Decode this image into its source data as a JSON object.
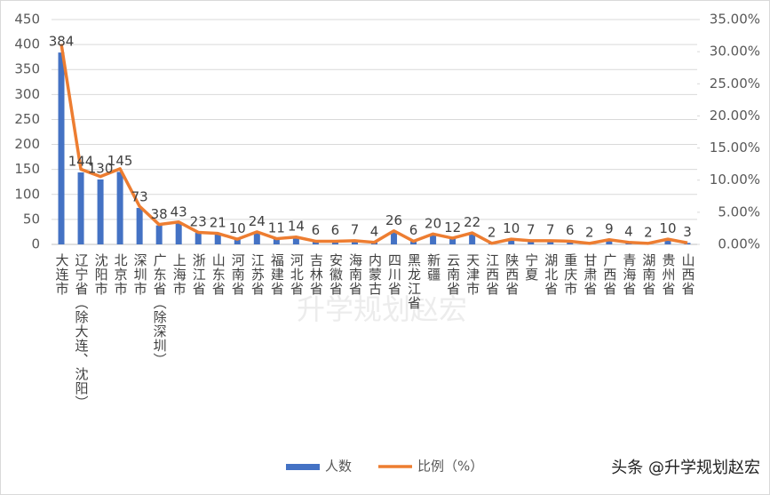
{
  "chart_data": {
    "type": "bar",
    "categories": [
      "大连市",
      "辽宁省（除大连、沈阳）",
      "沈阳市",
      "北京市",
      "深圳市",
      "广东省（除深圳）",
      "上海市",
      "浙江省",
      "山东省",
      "河南省",
      "江苏省",
      "福建省",
      "河北省",
      "吉林省",
      "安徽省",
      "海南省",
      "内蒙古",
      "四川省",
      "黑龙江省",
      "新疆",
      "云南省",
      "天津市",
      "江西省",
      "陕西省",
      "宁夏",
      "湖北省",
      "重庆市",
      "甘肃省",
      "广西省",
      "青海省",
      "湖南省",
      "贵州省",
      "山西省"
    ],
    "series": [
      {
        "name": "人数",
        "type": "bar",
        "color": "#4472c4",
        "values": [
          384,
          144,
          130,
          145,
          73,
          38,
          43,
          23,
          21,
          10,
          24,
          11,
          14,
          6,
          6,
          7,
          4,
          26,
          6,
          20,
          12,
          22,
          2,
          10,
          7,
          7,
          6,
          2,
          9,
          4,
          2,
          10,
          3
        ]
      },
      {
        "name": "比例（%）",
        "type": "line",
        "axis": "y2",
        "color": "#ed7d31",
        "values": [
          31.19,
          11.7,
          10.56,
          11.78,
          5.93,
          3.09,
          3.49,
          1.87,
          1.71,
          0.81,
          1.95,
          0.89,
          1.14,
          0.49,
          0.49,
          0.57,
          0.32,
          2.11,
          0.49,
          1.62,
          0.97,
          1.79,
          0.16,
          0.81,
          0.57,
          0.57,
          0.49,
          0.16,
          0.73,
          0.32,
          0.16,
          0.81,
          0.24
        ]
      }
    ],
    "ylim": [
      0,
      450
    ],
    "yticks": [
      0,
      50,
      100,
      150,
      200,
      250,
      300,
      350,
      400,
      450
    ],
    "y2lim": [
      0,
      35
    ],
    "y2ticks": [
      {
        "value": 0,
        "label": "0.00%"
      },
      {
        "value": 5,
        "label": "5.00%"
      },
      {
        "value": 10,
        "label": "10.00%"
      },
      {
        "value": 15,
        "label": "15.00%"
      },
      {
        "value": 20,
        "label": "20.00%"
      },
      {
        "value": 25,
        "label": "25.00%"
      },
      {
        "value": 30,
        "label": "30.00%"
      },
      {
        "value": 35,
        "label": "35.00%"
      }
    ],
    "grid": true,
    "legend": "bottom",
    "watermark": "升学规划赵宏",
    "annotation": "头条 @升学规划赵宏"
  }
}
